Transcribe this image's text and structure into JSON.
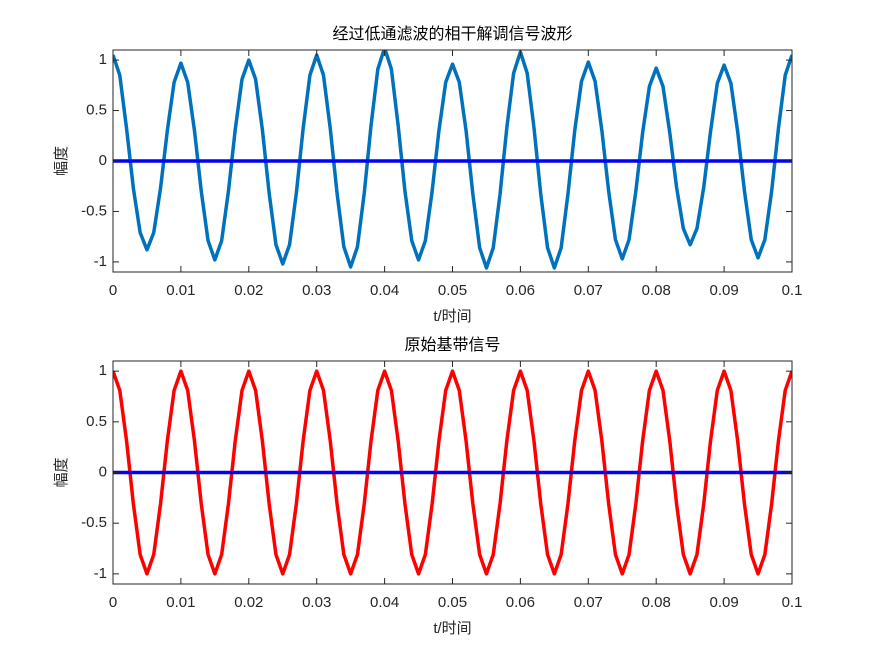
{
  "chart_data": [
    {
      "type": "line",
      "title": "经过低通滤波的相干解调信号波形",
      "x_label": "t/时间",
      "y_label": "幅度",
      "xlim": [
        0,
        0.1
      ],
      "ylim": [
        -1.1,
        1.1
      ],
      "xticks": [
        0,
        0.01,
        0.02,
        0.03,
        0.04,
        0.05,
        0.06,
        0.07,
        0.08,
        0.09,
        0.1
      ],
      "yticks": [
        -1,
        -0.5,
        0,
        0.5,
        1
      ],
      "x": [
        0,
        0.001,
        0.002,
        0.003,
        0.004,
        0.005,
        0.006,
        0.007,
        0.008,
        0.009,
        0.01,
        0.011,
        0.012,
        0.013,
        0.014,
        0.015,
        0.016,
        0.017,
        0.018,
        0.019,
        0.02,
        0.021,
        0.022,
        0.023,
        0.024,
        0.025,
        0.026,
        0.027,
        0.028,
        0.029,
        0.03,
        0.031,
        0.032,
        0.033,
        0.034,
        0.035,
        0.036,
        0.037,
        0.038,
        0.039,
        0.04,
        0.041,
        0.042,
        0.043,
        0.044,
        0.045,
        0.046,
        0.047,
        0.048,
        0.049,
        0.05,
        0.051,
        0.052,
        0.053,
        0.054,
        0.055,
        0.056,
        0.057,
        0.058,
        0.059,
        0.06,
        0.061,
        0.062,
        0.063,
        0.064,
        0.065,
        0.066,
        0.067,
        0.068,
        0.069,
        0.07,
        0.071,
        0.072,
        0.073,
        0.074,
        0.075,
        0.076,
        0.077,
        0.078,
        0.079,
        0.08,
        0.081,
        0.082,
        0.083,
        0.084,
        0.085,
        0.086,
        0.087,
        0.088,
        0.089,
        0.09,
        0.091,
        0.092,
        0.093,
        0.094,
        0.095,
        0.096,
        0.097,
        0.098,
        0.099,
        0.1
      ],
      "series": [
        {
          "color": "#0072bd",
          "values": [
            1.05,
            0.85,
            0.32,
            -0.27,
            -0.71,
            -0.88,
            -0.71,
            -0.27,
            0.3,
            0.78,
            0.97,
            0.78,
            0.3,
            -0.3,
            -0.79,
            -0.98,
            -0.79,
            -0.3,
            0.31,
            0.81,
            1.0,
            0.81,
            0.31,
            -0.32,
            -0.83,
            -1.02,
            -0.83,
            -0.32,
            0.32,
            0.85,
            1.05,
            0.85,
            0.32,
            -0.32,
            -0.85,
            -1.05,
            -0.85,
            -0.32,
            0.35,
            0.91,
            1.12,
            0.91,
            0.35,
            -0.3,
            -0.79,
            -0.98,
            -0.79,
            -0.3,
            0.3,
            0.78,
            0.96,
            0.78,
            0.3,
            -0.33,
            -0.86,
            -1.06,
            -0.86,
            -0.33,
            0.33,
            0.87,
            1.08,
            0.87,
            0.33,
            -0.33,
            -0.86,
            -1.06,
            -0.86,
            -0.33,
            0.3,
            0.79,
            0.98,
            0.79,
            0.3,
            -0.3,
            -0.78,
            -0.97,
            -0.78,
            -0.3,
            0.28,
            0.74,
            0.92,
            0.74,
            0.28,
            -0.26,
            -0.67,
            -0.83,
            -0.67,
            -0.26,
            0.29,
            0.77,
            0.95,
            0.77,
            0.29,
            -0.3,
            -0.78,
            -0.96,
            -0.78,
            -0.3,
            0.32,
            0.85,
            1.05
          ]
        },
        {
          "color": "#0000ff",
          "x": [
            0,
            0.1
          ],
          "values": [
            0,
            0
          ]
        }
      ]
    },
    {
      "type": "line",
      "title": "原始基带信号",
      "x_label": "t/时间",
      "y_label": "幅度",
      "xlim": [
        0,
        0.1
      ],
      "ylim": [
        -1.1,
        1.1
      ],
      "xticks": [
        0,
        0.01,
        0.02,
        0.03,
        0.04,
        0.05,
        0.06,
        0.07,
        0.08,
        0.09,
        0.1
      ],
      "yticks": [
        -1,
        -0.5,
        0,
        0.5,
        1
      ],
      "x": [
        0,
        0.001,
        0.002,
        0.003,
        0.004,
        0.005,
        0.006,
        0.007,
        0.008,
        0.009,
        0.01,
        0.011,
        0.012,
        0.013,
        0.014,
        0.015,
        0.016,
        0.017,
        0.018,
        0.019,
        0.02,
        0.021,
        0.022,
        0.023,
        0.024,
        0.025,
        0.026,
        0.027,
        0.028,
        0.029,
        0.03,
        0.031,
        0.032,
        0.033,
        0.034,
        0.035,
        0.036,
        0.037,
        0.038,
        0.039,
        0.04,
        0.041,
        0.042,
        0.043,
        0.044,
        0.045,
        0.046,
        0.047,
        0.048,
        0.049,
        0.05,
        0.051,
        0.052,
        0.053,
        0.054,
        0.055,
        0.056,
        0.057,
        0.058,
        0.059,
        0.06,
        0.061,
        0.062,
        0.063,
        0.064,
        0.065,
        0.066,
        0.067,
        0.068,
        0.069,
        0.07,
        0.071,
        0.072,
        0.073,
        0.074,
        0.075,
        0.076,
        0.077,
        0.078,
        0.079,
        0.08,
        0.081,
        0.082,
        0.083,
        0.084,
        0.085,
        0.086,
        0.087,
        0.088,
        0.089,
        0.09,
        0.091,
        0.092,
        0.093,
        0.094,
        0.095,
        0.096,
        0.097,
        0.098,
        0.099,
        0.1
      ],
      "series": [
        {
          "color": "#ff0000",
          "values": [
            1,
            0.81,
            0.31,
            -0.31,
            -0.81,
            -1,
            -0.81,
            -0.31,
            0.31,
            0.81,
            1,
            0.81,
            0.31,
            -0.31,
            -0.81,
            -1,
            -0.81,
            -0.31,
            0.31,
            0.81,
            1,
            0.81,
            0.31,
            -0.31,
            -0.81,
            -1,
            -0.81,
            -0.31,
            0.31,
            0.81,
            1,
            0.81,
            0.31,
            -0.31,
            -0.81,
            -1,
            -0.81,
            -0.31,
            0.31,
            0.81,
            1,
            0.81,
            0.31,
            -0.31,
            -0.81,
            -1,
            -0.81,
            -0.31,
            0.31,
            0.81,
            1,
            0.81,
            0.31,
            -0.31,
            -0.81,
            -1,
            -0.81,
            -0.31,
            0.31,
            0.81,
            1,
            0.81,
            0.31,
            -0.31,
            -0.81,
            -1,
            -0.81,
            -0.31,
            0.31,
            0.81,
            1,
            0.81,
            0.31,
            -0.31,
            -0.81,
            -1,
            -0.81,
            -0.31,
            0.31,
            0.81,
            1,
            0.81,
            0.31,
            -0.31,
            -0.81,
            -1,
            -0.81,
            -0.31,
            0.31,
            0.81,
            1,
            0.81,
            0.31,
            -0.31,
            -0.81,
            -1,
            -0.81,
            -0.31,
            0.31,
            0.81,
            1
          ]
        },
        {
          "color": "#0000ff",
          "x": [
            0,
            0.1
          ],
          "values": [
            0,
            0
          ]
        }
      ]
    }
  ]
}
